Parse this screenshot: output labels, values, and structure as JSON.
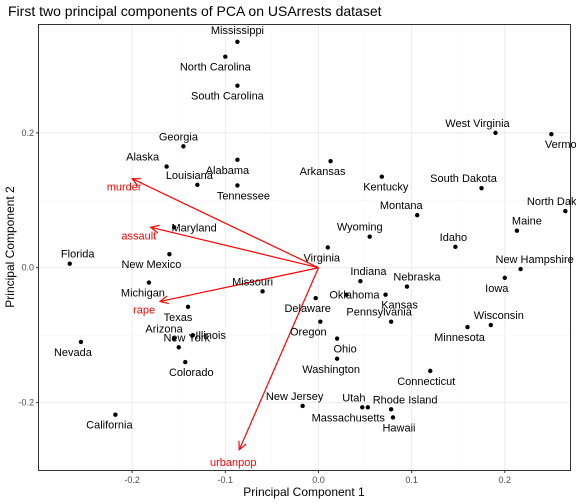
{
  "chart_data": {
    "type": "scatter",
    "title": "First two principal components of PCA on USArrests dataset",
    "xlabel": "Principal Component 1",
    "ylabel": "Principal Component 2",
    "xlim": [
      -0.3,
      0.27
    ],
    "ylim": [
      -0.3,
      0.36
    ],
    "xticks": [
      -0.2,
      -0.1,
      0.0,
      0.1,
      0.2
    ],
    "xtick_labels": [
      "-0.2",
      "-0.1",
      "0.0",
      "0.1",
      "0.2"
    ],
    "yticks": [
      -0.2,
      0.0,
      0.2
    ],
    "ytick_labels": [
      "-0.2",
      "0.0",
      "0.2"
    ],
    "grid": true,
    "point_color": "#000000",
    "vector_color": "#ff0000",
    "points": [
      {
        "label": "Mississippi",
        "x": -0.087,
        "y": 0.335
      },
      {
        "label": "North Carolina",
        "x": -0.1,
        "y": 0.313
      },
      {
        "label": "South Carolina",
        "x": -0.087,
        "y": 0.27
      },
      {
        "label": "Georgia",
        "x": -0.145,
        "y": 0.18
      },
      {
        "label": "Alaska",
        "x": -0.163,
        "y": 0.15
      },
      {
        "label": "Alabama",
        "x": -0.087,
        "y": 0.16
      },
      {
        "label": "Louisiana",
        "x": -0.13,
        "y": 0.123
      },
      {
        "label": "Tennessee",
        "x": -0.087,
        "y": 0.122
      },
      {
        "label": "Arkansas",
        "x": 0.013,
        "y": 0.158
      },
      {
        "label": "Kentucky",
        "x": 0.068,
        "y": 0.135
      },
      {
        "label": "West Virginia",
        "x": 0.19,
        "y": 0.2
      },
      {
        "label": "Vermont",
        "x": 0.25,
        "y": 0.198
      },
      {
        "label": "South Dakota",
        "x": 0.175,
        "y": 0.118
      },
      {
        "label": "North Dakota",
        "x": 0.265,
        "y": 0.084
      },
      {
        "label": "Maine",
        "x": 0.213,
        "y": 0.055
      },
      {
        "label": "Montana",
        "x": 0.106,
        "y": 0.078
      },
      {
        "label": "Wyoming",
        "x": 0.055,
        "y": 0.046
      },
      {
        "label": "Idaho",
        "x": 0.147,
        "y": 0.031
      },
      {
        "label": "Virginia",
        "x": 0.01,
        "y": 0.03
      },
      {
        "label": "Maryland",
        "x": -0.155,
        "y": 0.06
      },
      {
        "label": "New Mexico",
        "x": -0.16,
        "y": 0.02
      },
      {
        "label": "Florida",
        "x": -0.267,
        "y": 0.006
      },
      {
        "label": "Michigan",
        "x": -0.182,
        "y": -0.022
      },
      {
        "label": "New Hampshire",
        "x": 0.217,
        "y": -0.002
      },
      {
        "label": "Iowa",
        "x": 0.2,
        "y": -0.015
      },
      {
        "label": "Indiana",
        "x": 0.045,
        "y": -0.02
      },
      {
        "label": "Nebraska",
        "x": 0.095,
        "y": -0.028
      },
      {
        "label": "Missouri",
        "x": -0.06,
        "y": -0.035
      },
      {
        "label": "Oklahoma",
        "x": 0.03,
        "y": -0.04
      },
      {
        "label": "Kansas",
        "x": 0.072,
        "y": -0.04
      },
      {
        "label": "Delaware",
        "x": -0.003,
        "y": -0.045
      },
      {
        "label": "Texas",
        "x": -0.14,
        "y": -0.058
      },
      {
        "label": "Pennsylvania",
        "x": 0.078,
        "y": -0.08
      },
      {
        "label": "Wisconsin",
        "x": 0.185,
        "y": -0.085
      },
      {
        "label": "Minnesota",
        "x": 0.16,
        "y": -0.088
      },
      {
        "label": "Oregon",
        "x": 0.002,
        "y": -0.08
      },
      {
        "label": "Arizona",
        "x": -0.155,
        "y": -0.105
      },
      {
        "label": "Illinois",
        "x": -0.135,
        "y": -0.1
      },
      {
        "label": "New York",
        "x": -0.15,
        "y": -0.118
      },
      {
        "label": "Colorado",
        "x": -0.143,
        "y": -0.14
      },
      {
        "label": "Ohio",
        "x": 0.02,
        "y": -0.105
      },
      {
        "label": "Washington",
        "x": 0.02,
        "y": -0.135
      },
      {
        "label": "Nevada",
        "x": -0.255,
        "y": -0.11
      },
      {
        "label": "Connecticut",
        "x": 0.12,
        "y": -0.153
      },
      {
        "label": "California",
        "x": -0.218,
        "y": -0.218
      },
      {
        "label": "New Jersey",
        "x": -0.017,
        "y": -0.205
      },
      {
        "label": "Utah",
        "x": 0.053,
        "y": -0.207
      },
      {
        "label": "Massachusetts",
        "x": 0.047,
        "y": -0.207
      },
      {
        "label": "Rhode Island",
        "x": 0.078,
        "y": -0.21
      },
      {
        "label": "Hawaii",
        "x": 0.08,
        "y": -0.222
      }
    ],
    "vectors": [
      {
        "label": "murder",
        "x": -0.2,
        "y": 0.132
      },
      {
        "label": "assault",
        "x": -0.18,
        "y": 0.06
      },
      {
        "label": "rape",
        "x": -0.17,
        "y": -0.05
      },
      {
        "label": "urbanpop",
        "x": -0.085,
        "y": -0.27
      }
    ]
  }
}
